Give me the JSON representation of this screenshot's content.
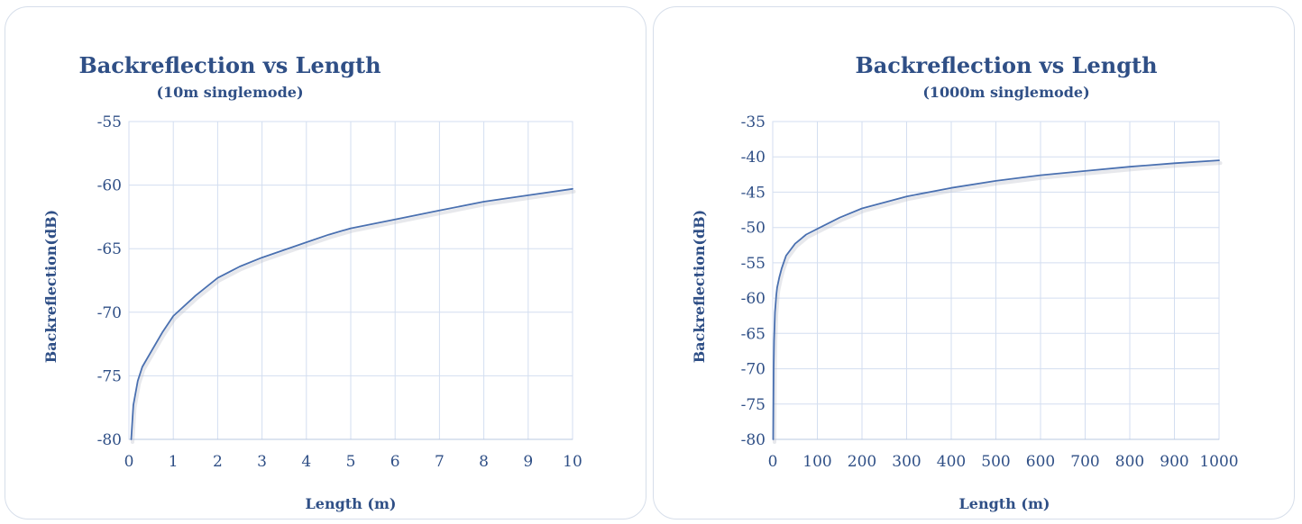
{
  "chart_data": [
    {
      "type": "line",
      "title": "Backreflection vs Length",
      "subtitle": "(10m singlemode)",
      "xlabel": "Length (m)",
      "ylabel": "Backreflection(dB)",
      "xlim": [
        0,
        10
      ],
      "ylim": [
        -80,
        -55
      ],
      "xticks": [
        0,
        1,
        2,
        3,
        4,
        5,
        6,
        7,
        8,
        9,
        10
      ],
      "yticks": [
        -55,
        -60,
        -65,
        -70,
        -75,
        -80
      ],
      "grid": true,
      "legend": false,
      "series": [
        {
          "x": [
            0.05,
            0.1,
            0.2,
            0.3,
            0.5,
            0.75,
            1,
            1.5,
            2,
            2.5,
            3,
            3.5,
            4,
            4.5,
            5,
            6,
            7,
            8,
            9,
            10
          ],
          "y": [
            -80,
            -77.3,
            -75.4,
            -74.3,
            -73.1,
            -71.6,
            -70.3,
            -68.7,
            -67.3,
            -66.4,
            -65.7,
            -65.1,
            -64.5,
            -63.9,
            -63.4,
            -62.7,
            -62.0,
            -61.3,
            -60.8,
            -60.3
          ]
        }
      ]
    },
    {
      "type": "line",
      "title": "Backreflection vs Length",
      "subtitle": "(1000m singlemode)",
      "xlabel": "Length (m)",
      "ylabel": "Backreflection(dB)",
      "xlim": [
        0,
        1000
      ],
      "ylim": [
        -80,
        -35
      ],
      "xticks": [
        0,
        100,
        200,
        300,
        400,
        500,
        600,
        700,
        800,
        900,
        1000
      ],
      "yticks": [
        -35,
        -40,
        -45,
        -50,
        -55,
        -60,
        -65,
        -70,
        -75,
        -80
      ],
      "grid": true,
      "legend": false,
      "series": [
        {
          "x": [
            1,
            2,
            3,
            5,
            8,
            10,
            15,
            20,
            30,
            50,
            75,
            100,
            150,
            200,
            300,
            400,
            500,
            600,
            700,
            800,
            900,
            1000
          ],
          "y": [
            -80,
            -70,
            -66,
            -62,
            -59.5,
            -58.5,
            -57,
            -55.8,
            -54,
            -52.3,
            -51,
            -50.2,
            -48.6,
            -47.3,
            -45.6,
            -44.4,
            -43.4,
            -42.6,
            -42.0,
            -41.4,
            -40.9,
            -40.5
          ]
        }
      ]
    }
  ]
}
